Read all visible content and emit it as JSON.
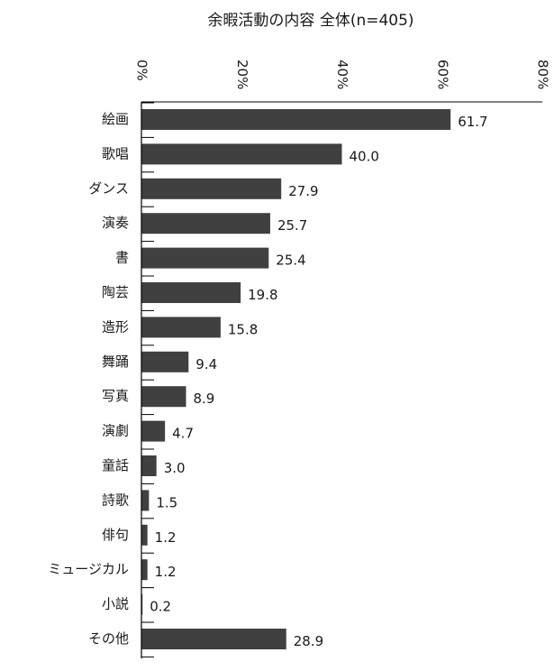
{
  "chart_data": {
    "type": "bar",
    "orientation": "horizontal",
    "title": "余暇活動の内容 全体(n=405)",
    "xlabel": "",
    "ylabel": "",
    "xlim": [
      0,
      80
    ],
    "tick_values": [
      0,
      20,
      40,
      60,
      80
    ],
    "tick_labels": [
      "0%",
      "20%",
      "40%",
      "60%",
      "80%"
    ],
    "tick_position": "top",
    "grid": false,
    "legend": "none",
    "bar_color": "#404040",
    "categories": [
      "絵画",
      "歌唱",
      "ダンス",
      "演奏",
      "書",
      "陶芸",
      "造形",
      "舞踊",
      "写真",
      "演劇",
      "童話",
      "詩歌",
      "俳句",
      "ミュージカル",
      "小説",
      "その他"
    ],
    "values": [
      61.7,
      40.0,
      27.9,
      25.7,
      25.4,
      19.8,
      15.8,
      9.4,
      8.9,
      4.7,
      3.0,
      1.5,
      1.2,
      1.2,
      0.2,
      28.9
    ],
    "value_labels": [
      "61.7",
      "40.0",
      "27.9",
      "25.7",
      "25.4",
      "19.8",
      "15.8",
      "9.4",
      "8.9",
      "4.7",
      "3.0",
      "1.5",
      "1.2",
      "1.2",
      "0.2",
      "28.9"
    ]
  }
}
